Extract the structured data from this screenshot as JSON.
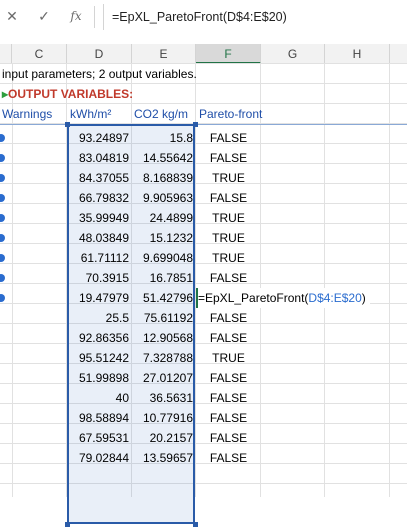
{
  "formula_bar": {
    "cancel_icon": "✕",
    "enter_icon": "✓",
    "fx_label": "fx",
    "formula": "=EpXL_ParetoFront(D$4:E$20)"
  },
  "columns": [
    "C",
    "D",
    "E",
    "F",
    "G",
    "H"
  ],
  "text": {
    "row1": "input parameters; 2 output variables.",
    "row2": "OUTPUT VARIABLES:",
    "hdr_c": "Warnings",
    "hdr_d": "kWh/m²",
    "hdr_e": "CO2 kg/m",
    "hdr_f": "Pareto-front"
  },
  "edit_cell": {
    "prefix": "=EpXL_ParetoFront(",
    "ref": "D$4:E$20",
    "suffix": ")"
  },
  "rows": [
    {
      "d": "93.24897",
      "e": "15.8",
      "f": "FALSE"
    },
    {
      "d": "83.04819",
      "e": "14.55642",
      "f": "FALSE"
    },
    {
      "d": "84.37055",
      "e": "8.168839",
      "f": "TRUE"
    },
    {
      "d": "66.79832",
      "e": "9.905963",
      "f": "FALSE"
    },
    {
      "d": "35.99949",
      "e": "24.4899",
      "f": "TRUE"
    },
    {
      "d": "48.03849",
      "e": "15.1232",
      "f": "TRUE"
    },
    {
      "d": "61.71112",
      "e": "9.699048",
      "f": "TRUE"
    },
    {
      "d": "70.3915",
      "e": "16.7851",
      "f": "FALSE"
    },
    {
      "d": "19.47979",
      "e": "51.42796",
      "f": ""
    },
    {
      "d": "25.5",
      "e": "75.61192",
      "f": "FALSE"
    },
    {
      "d": "92.86356",
      "e": "12.90568",
      "f": "FALSE"
    },
    {
      "d": "95.51242",
      "e": "7.328788",
      "f": "TRUE"
    },
    {
      "d": "51.99898",
      "e": "27.01207",
      "f": "FALSE"
    },
    {
      "d": "40",
      "e": "36.5631",
      "f": "FALSE"
    },
    {
      "d": "98.58894",
      "e": "10.77916",
      "f": "FALSE"
    },
    {
      "d": "67.59531",
      "e": "20.2157",
      "f": "FALSE"
    },
    {
      "d": "79.02844",
      "e": "13.59657",
      "f": "FALSE"
    }
  ]
}
